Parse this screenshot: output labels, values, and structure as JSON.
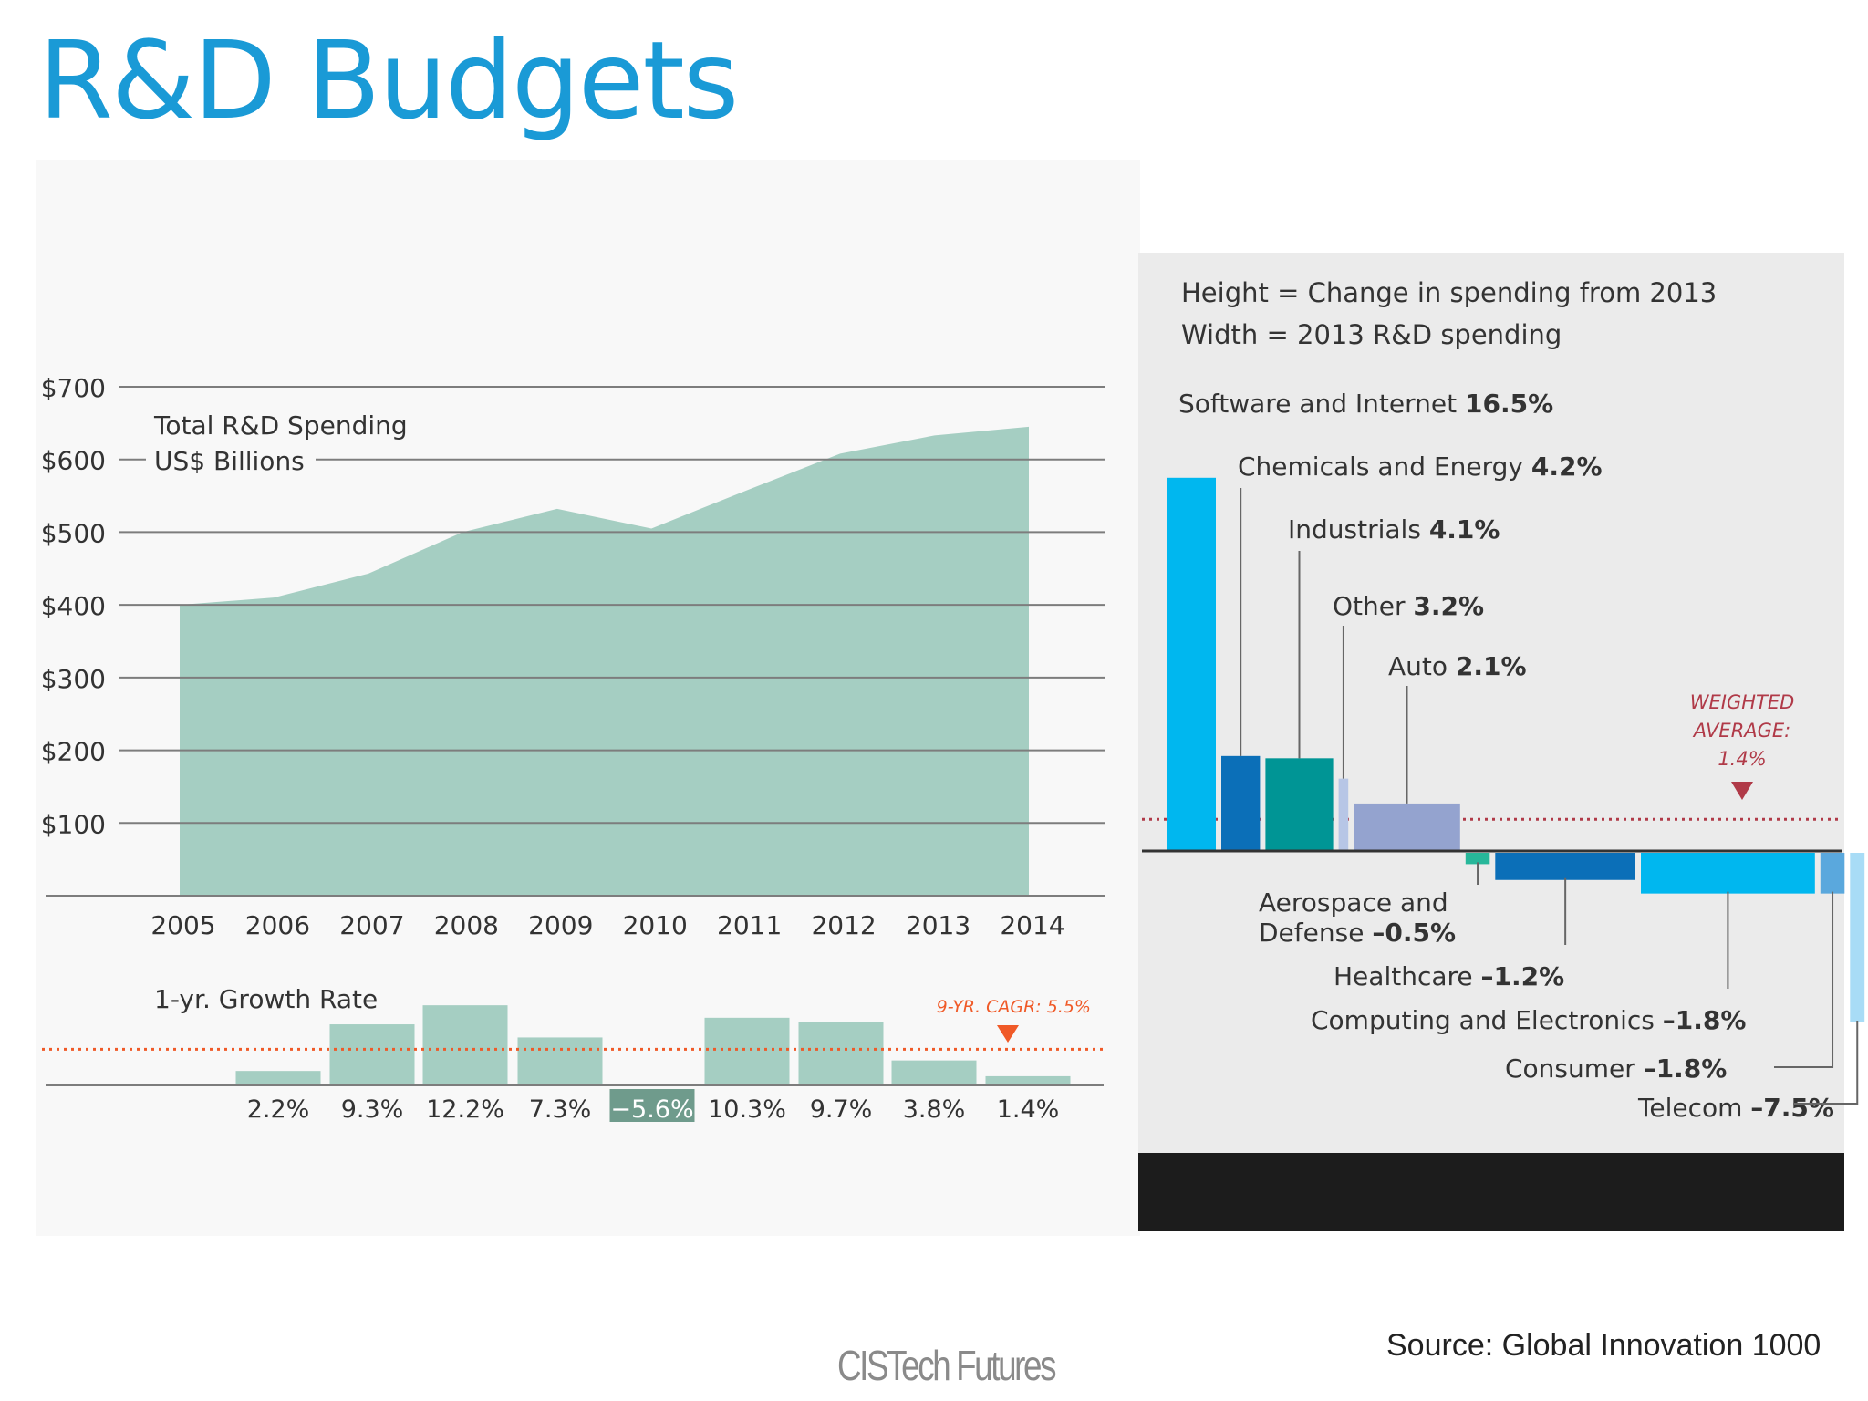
{
  "slide": {
    "title": "R&D Budgets",
    "source": "Source: Global Innovation 1000",
    "brand_left": "CIS",
    "brand_right": "Tech Futures"
  },
  "colors": {
    "title": "#1a9ad6",
    "area_fill": "#a5cec2",
    "growth_bar": "#a5cec2",
    "growth_negative_label_bg": "#6f9b8c",
    "cagr_line": "#f05a28",
    "weighted_avg": "#b03a48",
    "software": "#00b7ef",
    "chemicals": "#0b6fb8",
    "industrials": "#009595",
    "other": "#b7c6e6",
    "auto": "#94a3cf",
    "aerospace": "#27b79a",
    "healthcare": "#0b6fb8",
    "computing": "#00b7ef",
    "consumer": "#5aa8dd",
    "telecom": "#a8dcf6"
  },
  "chart_data": [
    {
      "type": "area",
      "title": "Total R&D Spending",
      "subtitle": "US$ Billions",
      "categories": [
        "2005",
        "2006",
        "2007",
        "2008",
        "2009",
        "2010",
        "2011",
        "2012",
        "2013",
        "2014"
      ],
      "values": [
        400,
        410,
        443,
        500,
        532,
        505,
        557,
        608,
        633,
        645
      ],
      "ylim": [
        0,
        700
      ],
      "yticks": [
        100,
        200,
        300,
        400,
        500,
        600,
        700
      ],
      "ytick_labels": [
        "$100",
        "$200",
        "$300",
        "$400",
        "$500",
        "$600",
        "$700"
      ],
      "grid": true
    },
    {
      "type": "bar",
      "title": "1-yr. Growth Rate",
      "categories": [
        "2006",
        "2007",
        "2008",
        "2009",
        "2010",
        "2011",
        "2012",
        "2013",
        "2014"
      ],
      "values": [
        2.2,
        9.3,
        12.2,
        7.3,
        -5.6,
        10.3,
        9.7,
        3.8,
        1.4
      ],
      "labels": [
        "2.2%",
        "9.3%",
        "12.2%",
        "7.3%",
        "−5.6%",
        "10.3%",
        "9.7%",
        "3.8%",
        "1.4%"
      ],
      "reference_line": {
        "value": 5.5,
        "label": "9-YR. CAGR: 5.5%"
      }
    },
    {
      "type": "bar",
      "legend": [
        "Height = Change in spending from 2013",
        "Width = 2013 R&D spending"
      ],
      "reference_line": {
        "value": 1.4,
        "label_lines": [
          "WEIGHTED",
          "AVERAGE:",
          "1.4%"
        ]
      },
      "series": [
        {
          "name": "Software and Internet",
          "value_label": "16.5%",
          "change": 16.5,
          "width_share": 5,
          "color_key": "software"
        },
        {
          "name": "Chemicals and Energy",
          "value_label": "4.2%",
          "change": 4.2,
          "width_share": 4,
          "color_key": "chemicals"
        },
        {
          "name": "Industrials",
          "value_label": "4.1%",
          "change": 4.1,
          "width_share": 7,
          "color_key": "industrials"
        },
        {
          "name": "Other",
          "value_label": "3.2%",
          "change": 3.2,
          "width_share": 1,
          "color_key": "other"
        },
        {
          "name": "Auto",
          "value_label": "2.1%",
          "change": 2.1,
          "width_share": 11,
          "color_key": "auto"
        },
        {
          "name": "Aerospace and Defense",
          "value_label": "–0.5%",
          "change": -0.5,
          "width_share": 2.5,
          "color_key": "aerospace"
        },
        {
          "name": "Healthcare",
          "value_label": "–1.2%",
          "change": -1.2,
          "width_share": 14.5,
          "color_key": "healthcare"
        },
        {
          "name": "Computing and Electronics",
          "value_label": "–1.8%",
          "change": -1.8,
          "width_share": 18,
          "color_key": "computing"
        },
        {
          "name": "Consumer",
          "value_label": "–1.8%",
          "change": -1.8,
          "width_share": 2.5,
          "color_key": "consumer"
        },
        {
          "name": "Telecom",
          "value_label": "–7.5%",
          "change": -7.5,
          "width_share": 1.5,
          "color_key": "telecom"
        }
      ]
    }
  ]
}
